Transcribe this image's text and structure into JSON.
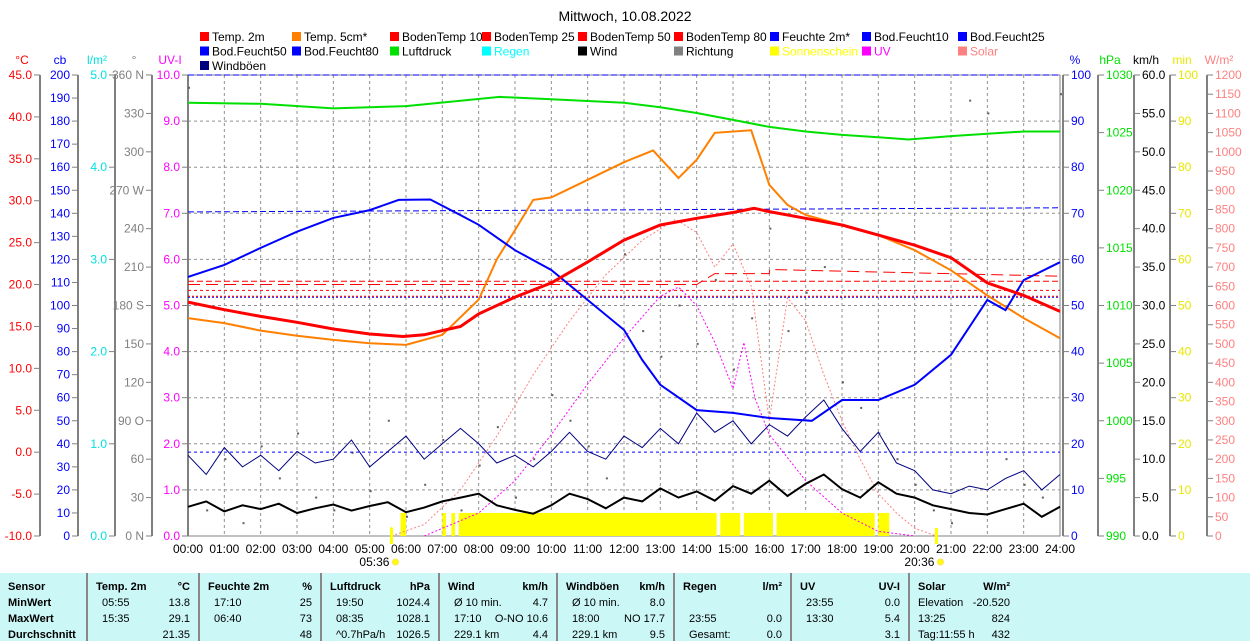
{
  "title": "Mittwoch, 10.08.2022",
  "legend": [
    {
      "label": "Temp. 2m",
      "color": "#ff0000"
    },
    {
      "label": "Temp. 5cm*",
      "color": "#ff8000"
    },
    {
      "label": "BodenTemp 10",
      "color": "#ff0000"
    },
    {
      "label": "BodenTemp 25",
      "color": "#ff0000"
    },
    {
      "label": "BodenTemp 50",
      "color": "#ff0000"
    },
    {
      "label": "BodenTemp 80",
      "color": "#ff0000"
    },
    {
      "label": "Feuchte 2m*",
      "color": "#0000ff"
    },
    {
      "label": "Bod.Feucht10",
      "color": "#0000ff"
    },
    {
      "label": "Bod.Feucht25",
      "color": "#0000ff"
    },
    {
      "label": "Bod.Feucht50",
      "color": "#0000ff"
    },
    {
      "label": "Bod.Feucht80",
      "color": "#0000ff"
    },
    {
      "label": "Luftdruck",
      "color": "#00e000"
    },
    {
      "label": "Regen",
      "color": "#00ffff"
    },
    {
      "label": "Wind",
      "color": "#000000"
    },
    {
      "label": "Richtung",
      "color": "#808080"
    },
    {
      "label": "Sonnenschein",
      "color": "#ffff00"
    },
    {
      "label": "UV",
      "color": "#ff00ff"
    },
    {
      "label": "Solar",
      "color": "#ff8080"
    },
    {
      "label": "Windböen",
      "color": "#000080"
    }
  ],
  "chart_data": {
    "type": "line",
    "title": "Mittwoch, 10.08.2022",
    "x_ticks": [
      "00:00",
      "01:00",
      "02:00",
      "03:00",
      "04:00",
      "05:00",
      "06:00",
      "07:00",
      "08:00",
      "09:00",
      "10:00",
      "11:00",
      "12:00",
      "13:00",
      "14:00",
      "15:00",
      "16:00",
      "17:00",
      "18:00",
      "19:00",
      "20:00",
      "21:00",
      "22:00",
      "23:00",
      "24:00"
    ],
    "xlim": [
      0,
      24
    ],
    "sunrise": "05:36",
    "sunset": "20:36",
    "axes_left": [
      {
        "unit": "°C",
        "color": "#ff0000",
        "min": -10,
        "max": 45,
        "labels": [
          "45.0",
          "40.0",
          "35.0",
          "30.0",
          "25.0",
          "20.0",
          "15.0",
          "10.0",
          "5.0",
          "0.0",
          "-5.0",
          "-10.0"
        ]
      },
      {
        "unit": "cb",
        "color": "#0000ff",
        "min": 0,
        "max": 200,
        "labels": [
          "200",
          "190",
          "180",
          "170",
          "160",
          "150",
          "140",
          "130",
          "120",
          "110",
          "100",
          "90",
          "80",
          "70",
          "60",
          "50",
          "40",
          "30",
          "20",
          "10",
          "0"
        ]
      },
      {
        "unit": "l/m²",
        "color": "#00e0e0",
        "min": 0,
        "max": 5,
        "labels": [
          "5.0",
          "4.0",
          "3.0",
          "2.0",
          "1.0",
          "0.0"
        ]
      },
      {
        "unit": "°",
        "color": "#808080",
        "min": 0,
        "max": 360,
        "labels": [
          "360 N",
          "330",
          "300",
          "270 W",
          "240",
          "210",
          "180 S",
          "150",
          "120",
          "90 O",
          "60",
          "30",
          "0 N"
        ]
      },
      {
        "unit": "UV-I",
        "color": "#ff00ff",
        "min": 0,
        "max": 10,
        "labels": [
          "10.0",
          "9.0",
          "8.0",
          "7.0",
          "6.0",
          "5.0",
          "4.0",
          "3.0",
          "2.0",
          "1.0",
          "0.0"
        ]
      }
    ],
    "axes_right": [
      {
        "unit": "%",
        "color": "#0000ff",
        "min": 0,
        "max": 100,
        "labels": [
          "100",
          "90",
          "80",
          "70",
          "60",
          "50",
          "40",
          "30",
          "20",
          "10",
          "0"
        ]
      },
      {
        "unit": "hPa",
        "color": "#00e000",
        "min": 990,
        "max": 1030,
        "labels": [
          "1030",
          "1025",
          "1020",
          "1015",
          "1010",
          "1005",
          "1000",
          "995",
          "990"
        ]
      },
      {
        "unit": "km/h",
        "color": "#000000",
        "min": 0,
        "max": 60,
        "labels": [
          "60.0",
          "55.0",
          "50.0",
          "45.0",
          "40.0",
          "35.0",
          "30.0",
          "25.0",
          "20.0",
          "15.0",
          "10.0",
          "5.0",
          "0.0"
        ]
      },
      {
        "unit": "min",
        "color": "#ffff00",
        "min": 0,
        "max": 100,
        "labels": [
          "100",
          "90",
          "80",
          "70",
          "60",
          "50",
          "40",
          "30",
          "20",
          "10",
          "0"
        ]
      },
      {
        "unit": "W/m²",
        "color": "#ff8080",
        "min": 0,
        "max": 1200,
        "labels": [
          "1200",
          "1150",
          "1100",
          "1050",
          "1000",
          "950",
          "900",
          "850",
          "800",
          "750",
          "700",
          "650",
          "600",
          "550",
          "500",
          "450",
          "400",
          "350",
          "300",
          "250",
          "200",
          "150",
          "100",
          "50",
          "0"
        ]
      }
    ],
    "series": [
      {
        "name": "Temp. 2m",
        "axis": "°C",
        "color": "#ff0000",
        "width": 3,
        "x": [
          0,
          1,
          2,
          3,
          4,
          5,
          5.92,
          6.5,
          7,
          7.5,
          8,
          9,
          10,
          11,
          12,
          13,
          14,
          15,
          15.58,
          16,
          17,
          18,
          19,
          20,
          21,
          22,
          23,
          24
        ],
        "y": [
          17.9,
          17.0,
          16.2,
          15.5,
          14.7,
          14.1,
          13.8,
          14.0,
          14.5,
          15.0,
          16.5,
          18.5,
          20.2,
          22.7,
          25.3,
          27.1,
          27.9,
          28.6,
          29.1,
          28.7,
          27.9,
          27.1,
          25.9,
          24.7,
          23.2,
          20.2,
          18.7,
          16.8
        ]
      },
      {
        "name": "Temp. 5cm*",
        "axis": "°C",
        "color": "#ff8000",
        "width": 2,
        "x": [
          0,
          1,
          2,
          3,
          4,
          5,
          6,
          7,
          8,
          8.5,
          9,
          9.5,
          10,
          11,
          12,
          12.8,
          13.5,
          14,
          14.5,
          15.5,
          16,
          16.5,
          17,
          18,
          19,
          20,
          21,
          22,
          23,
          24
        ],
        "y": [
          16.0,
          15.4,
          14.5,
          13.9,
          13.4,
          13.0,
          12.8,
          14.0,
          18.2,
          23.0,
          26.5,
          30.1,
          30.4,
          32.5,
          34.6,
          36.0,
          32.7,
          34.9,
          38.1,
          38.4,
          31.9,
          29.5,
          28.3,
          27.1,
          25.9,
          24.1,
          21.7,
          18.7,
          16.0,
          13.6
        ]
      },
      {
        "name": "Feuchte 2m*",
        "axis": "%",
        "color": "#0000ff",
        "width": 2,
        "x": [
          0,
          1,
          2,
          3,
          4,
          5,
          5.8,
          6.67,
          7.5,
          8,
          9,
          10,
          11,
          12,
          12.5,
          13,
          14,
          15,
          16,
          17.17,
          18,
          19,
          20,
          21,
          22,
          22.5,
          23,
          24
        ],
        "y": [
          56.2,
          58.8,
          62.5,
          66,
          69,
          70.7,
          72.9,
          73,
          69.6,
          67.5,
          62,
          57.7,
          51.2,
          44.7,
          38.2,
          32.8,
          27.3,
          26.7,
          25.6,
          25,
          29.5,
          29.5,
          32.8,
          39.3,
          51.2,
          49,
          55.5,
          59.4
        ]
      },
      {
        "name": "Luftdruck",
        "axis": "hPa",
        "color": "#00e000",
        "width": 2,
        "x": [
          0,
          2,
          4,
          6,
          8.58,
          10,
          12,
          13,
          14,
          15,
          16,
          17,
          18,
          19,
          19.83,
          21,
          22,
          23,
          24
        ],
        "y": [
          1027.6,
          1027.5,
          1027.1,
          1027.3,
          1028.1,
          1027.9,
          1027.6,
          1027.2,
          1026.7,
          1026.1,
          1025.5,
          1025.1,
          1024.8,
          1024.6,
          1024.4,
          1024.7,
          1024.9,
          1025.1,
          1025.1
        ]
      },
      {
        "name": "Wind",
        "axis": "km/h",
        "color": "#000000",
        "width": 2,
        "x_step": 0.5,
        "y": [
          3.8,
          4.5,
          3.2,
          4.0,
          3.5,
          4.2,
          3.0,
          3.6,
          4.1,
          3.3,
          3.9,
          4.4,
          3.1,
          3.7,
          4.5,
          5.0,
          5.5,
          4.0,
          3.4,
          2.9,
          4.0,
          5.5,
          4.8,
          3.6,
          5.0,
          4.5,
          6.2,
          5.0,
          5.8,
          4.6,
          6.5,
          5.5,
          7.2,
          5.2,
          6.8,
          8.0,
          6.1,
          5.0,
          7.0,
          5.5,
          5.0,
          4.0,
          3.5,
          3.0,
          2.8,
          3.5,
          4.2,
          2.5,
          3.8
        ]
      },
      {
        "name": "Windböen",
        "axis": "km/h",
        "color": "#000080",
        "width": 1,
        "x_step": 0.5,
        "y": [
          10.5,
          8.0,
          11.5,
          9.0,
          10.5,
          8.5,
          11.0,
          9.5,
          10.0,
          12.5,
          9.0,
          11.0,
          13.0,
          10.0,
          12.0,
          14.0,
          12.0,
          9.5,
          10.5,
          9.0,
          11.0,
          13.5,
          11.0,
          10.0,
          13.0,
          11.5,
          14.0,
          12.0,
          16.0,
          13.5,
          15.0,
          12.0,
          14.5,
          13.0,
          15.5,
          17.7,
          14.0,
          11.0,
          13.5,
          9.5,
          8.5,
          6.0,
          5.5,
          6.5,
          6.0,
          7.5,
          8.5,
          6.0,
          8.0
        ]
      },
      {
        "name": "Solar",
        "axis": "W/m²",
        "color": "#ff8080",
        "width": 1,
        "dash": "2,2",
        "x": [
          5.6,
          6.5,
          7.5,
          8.5,
          9.5,
          10.5,
          11.5,
          12.5,
          13.42,
          14,
          14.5,
          15,
          15.5,
          16,
          16.5,
          17,
          17.5,
          18,
          18.5,
          19,
          19.5,
          20,
          20.6
        ],
        "y": [
          0,
          30,
          120,
          260,
          420,
          560,
          680,
          770,
          824,
          790,
          700,
          760,
          650,
          300,
          620,
          560,
          420,
          300,
          200,
          110,
          60,
          20,
          0
        ]
      },
      {
        "name": "UV",
        "axis": "UV-I",
        "color": "#ff00ff",
        "width": 1,
        "dash": "2,2",
        "x": [
          6.5,
          8,
          9,
          10,
          11,
          12,
          13,
          13.5,
          14,
          14.5,
          15,
          15.3,
          15.6,
          16,
          17,
          18,
          19,
          20
        ],
        "y": [
          0,
          0.5,
          1.2,
          2.2,
          3.3,
          4.3,
          5.2,
          5.4,
          5.0,
          4.2,
          3.2,
          4.2,
          3.0,
          2.2,
          1.2,
          0.5,
          0.1,
          0
        ]
      },
      {
        "name": "BodenTemp 10",
        "axis": "°C",
        "color": "#ff0000",
        "width": 1,
        "dash": "12,6",
        "x": [
          0,
          14,
          14.5,
          16,
          16.01,
          24
        ],
        "y": [
          20.0,
          20.0,
          21.3,
          21.3,
          21.8,
          21.0
        ]
      },
      {
        "name": "BodenTemp 25",
        "axis": "°C",
        "color": "#ff0000",
        "width": 1,
        "dash": "6,3",
        "x": [
          0,
          24
        ],
        "y": [
          20.4,
          20.4
        ]
      },
      {
        "name": "BodenTemp 50",
        "axis": "°C",
        "color": "#ff0000",
        "width": 1,
        "dash": "3,3",
        "x": [
          0,
          24
        ],
        "y": [
          19.3,
          19.3
        ]
      },
      {
        "name": "BodenTemp 80",
        "axis": "°C",
        "color": "#ff0000",
        "width": 1,
        "dash": "2,2",
        "x": [
          0,
          24
        ],
        "y": [
          18.6,
          18.6
        ]
      },
      {
        "name": "Bod.Feucht10",
        "axis": "%",
        "color": "#0000ff",
        "width": 1,
        "dash": "6,3",
        "x": [
          0,
          24
        ],
        "y": [
          70.3,
          71.2
        ]
      },
      {
        "name": "Bod.Feucht25",
        "axis": "%",
        "color": "#0000ff",
        "width": 1,
        "dash": "3,3",
        "x": [
          0,
          24
        ],
        "y": [
          18.2,
          18.2
        ]
      },
      {
        "name": "Bod.Feucht50",
        "axis": "%",
        "color": "#0000ff",
        "width": 1,
        "dash": "6,3",
        "x": [
          0,
          24
        ],
        "y": [
          100,
          100
        ]
      },
      {
        "name": "Bod.Feucht80",
        "axis": "%",
        "color": "#0000ff",
        "width": 1,
        "dash": "2,2",
        "x": [
          0,
          24
        ],
        "y": [
          51.8,
          51.8
        ]
      }
    ],
    "sunshine_min": {
      "axis": "min",
      "color": "#ffff00",
      "intervals": [
        [
          5.58,
          5.62,
          2
        ],
        [
          5.85,
          6.0,
          5
        ],
        [
          7.0,
          7.1,
          5
        ],
        [
          7.25,
          7.35,
          5
        ],
        [
          7.45,
          14.55,
          5
        ],
        [
          14.65,
          15.2,
          5
        ],
        [
          15.3,
          16.1,
          5
        ],
        [
          16.2,
          18.9,
          5
        ],
        [
          19.0,
          19.3,
          5
        ]
      ]
    },
    "direction_deg": {
      "axis": "°",
      "color": "#808080",
      "x_step": 0.5,
      "y": [
        350,
        20,
        60,
        10,
        70,
        45,
        80,
        30,
        20,
        65,
        35,
        90,
        15,
        40,
        75,
        20,
        55,
        85,
        30,
        60,
        110,
        90,
        70,
        45,
        220,
        160,
        140,
        180,
        150,
        200,
        130,
        170,
        240,
        160,
        190,
        210,
        120,
        100,
        80,
        60,
        40,
        20,
        10,
        340,
        330,
        60,
        40,
        30,
        345
      ]
    }
  },
  "stats": {
    "columns": [
      {
        "header": "Sensor",
        "unit": "",
        "rows": [
          "MinWert",
          "MaxWert",
          "Durchschnitt"
        ]
      },
      {
        "header": "Temp. 2m",
        "unit": "°C",
        "rows_a": [
          "05:55",
          "15:35",
          ""
        ],
        "rows_b": [
          "13.8",
          "29.1",
          "21.35"
        ]
      },
      {
        "header": "Feuchte 2m",
        "unit": "%",
        "rows_a": [
          "17:10",
          "06:40",
          ""
        ],
        "rows_b": [
          "25",
          "73",
          "48"
        ]
      },
      {
        "header": "Luftdruck",
        "unit": "hPa",
        "rows_a": [
          "19:50",
          "08:35",
          "^0.7hPa/h"
        ],
        "rows_b": [
          "1024.4",
          "1028.1",
          "1026.5"
        ]
      },
      {
        "header": "Wind",
        "unit": "km/h",
        "rows_a": [
          "Ø 10 min.",
          "17:10",
          "229.1 km"
        ],
        "rows_b": [
          "4.7",
          "O-NO 10.6",
          "4.4"
        ]
      },
      {
        "header": "Windböen",
        "unit": "km/h",
        "rows_a": [
          "Ø 10 min.",
          "18:00",
          "229.1 km"
        ],
        "rows_b": [
          "8.0",
          "NO 17.7",
          "9.5"
        ]
      },
      {
        "header": "Regen",
        "unit": "l/m²",
        "rows_a": [
          "",
          "23:55",
          "Gesamt:"
        ],
        "rows_b": [
          "",
          "0.0",
          "0.0"
        ]
      },
      {
        "header": "UV",
        "unit": "UV-I",
        "rows_a": [
          "23:55",
          "13:30",
          ""
        ],
        "rows_b": [
          "0.0",
          "5.4",
          "3.1"
        ]
      },
      {
        "header": "Solar",
        "unit": "W/m²",
        "rows_a": [
          "Elevation",
          "13:25",
          "Tag:11:55 h"
        ],
        "rows_b": [
          "-20.520",
          "824",
          "432"
        ]
      }
    ]
  }
}
